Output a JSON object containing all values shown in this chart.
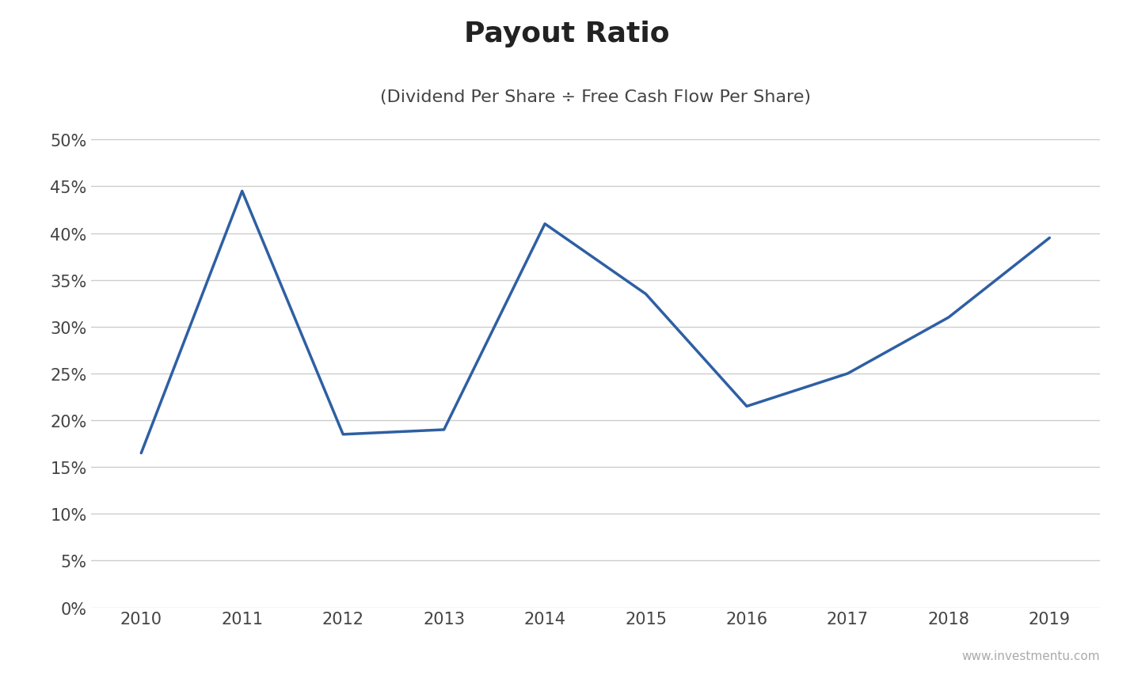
{
  "title": "Payout Ratio",
  "subtitle": "(Dividend Per Share ÷ Free Cash Flow Per Share)",
  "years": [
    2010,
    2011,
    2012,
    2013,
    2014,
    2015,
    2016,
    2017,
    2018,
    2019
  ],
  "values": [
    0.165,
    0.445,
    0.185,
    0.19,
    0.41,
    0.335,
    0.215,
    0.25,
    0.31,
    0.395
  ],
  "line_color": "#2E5FA3",
  "line_width": 2.5,
  "ylim": [
    0,
    0.52
  ],
  "yticks": [
    0.0,
    0.05,
    0.1,
    0.15,
    0.2,
    0.25,
    0.3,
    0.35,
    0.4,
    0.45,
    0.5
  ],
  "grid_color": "#cccccc",
  "background_color": "#ffffff",
  "title_fontsize": 26,
  "subtitle_fontsize": 16,
  "tick_fontsize": 15,
  "watermark": "www.investmentu.com",
  "watermark_color": "#aaaaaa",
  "title_color": "#222222",
  "subtitle_color": "#444444"
}
